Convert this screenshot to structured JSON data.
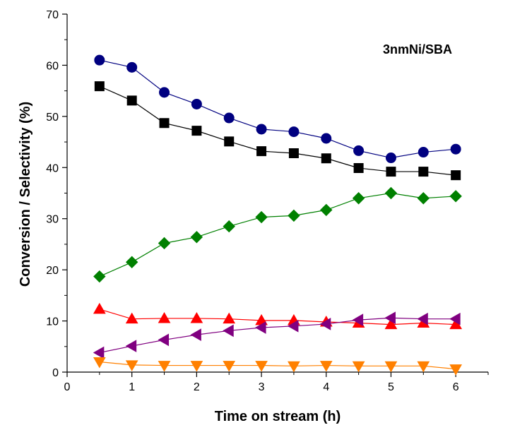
{
  "chart_data": {
    "type": "line",
    "title": "",
    "annotation": "3nmNi/SBA",
    "xlabel": "Time on stream (h)",
    "ylabel": "Conversion / Selectivity (%)",
    "xlim": [
      0,
      6.5
    ],
    "ylim": [
      0,
      70
    ],
    "xticks": [
      0,
      1,
      2,
      3,
      4,
      5,
      6
    ],
    "yticks": [
      0,
      10,
      20,
      30,
      40,
      50,
      60,
      70
    ],
    "x": [
      0.5,
      1,
      1.5,
      2,
      2.5,
      3,
      3.5,
      4,
      4.5,
      5,
      5.5,
      6
    ],
    "grid": false,
    "legend": "none",
    "series": [
      {
        "marker": "circle",
        "color": "#000080",
        "values": [
          61.0,
          59.6,
          54.7,
          52.4,
          49.7,
          47.5,
          47.0,
          45.7,
          43.3,
          41.9,
          43.0,
          43.6
        ]
      },
      {
        "marker": "square",
        "color": "#000000",
        "values": [
          55.9,
          53.1,
          48.7,
          47.2,
          45.1,
          43.2,
          42.8,
          41.8,
          39.9,
          39.2,
          39.2,
          38.5
        ]
      },
      {
        "marker": "diamond",
        "color": "#008000",
        "values": [
          18.7,
          21.5,
          25.2,
          26.4,
          28.5,
          30.3,
          30.6,
          31.7,
          34.0,
          35.0,
          34.0,
          34.4
        ]
      },
      {
        "marker": "triangle-up",
        "color": "#ff0000",
        "values": [
          12.3,
          10.4,
          10.5,
          10.5,
          10.4,
          10.1,
          10.1,
          9.8,
          9.6,
          9.3,
          9.6,
          9.3
        ]
      },
      {
        "marker": "triangle-left",
        "color": "#800080",
        "values": [
          3.8,
          5.1,
          6.3,
          7.3,
          8.1,
          8.7,
          9.0,
          9.4,
          10.2,
          10.6,
          10.4,
          10.4
        ]
      },
      {
        "marker": "triangle-down",
        "color": "#ff8000",
        "values": [
          2.0,
          1.4,
          1.3,
          1.3,
          1.3,
          1.3,
          1.2,
          1.3,
          1.2,
          1.2,
          1.2,
          0.6
        ]
      }
    ]
  }
}
